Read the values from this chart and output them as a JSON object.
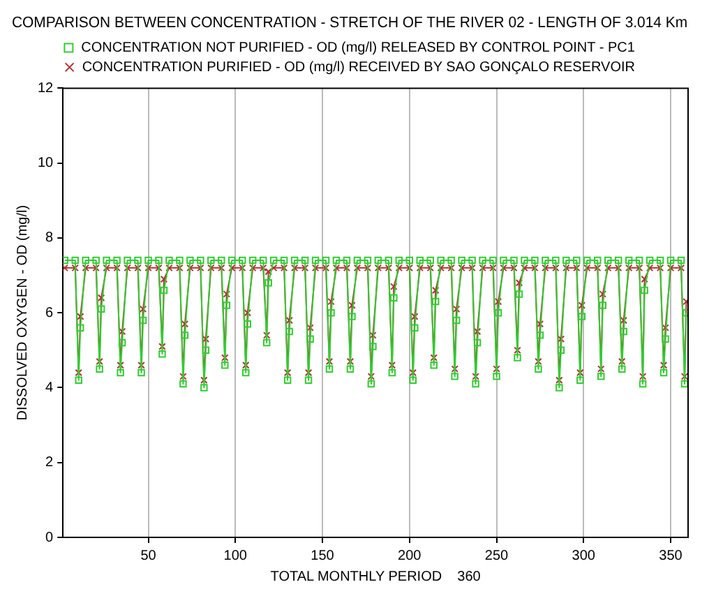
{
  "chart_data": {
    "type": "line",
    "title": "COMPARISON BETWEEN CONCENTRATION - STRETCH OF THE RIVER 02 - LENGTH OF 3.014 Km",
    "xlabel": "TOTAL MONTHLY PERIOD    360",
    "ylabel": "DISSOLVED OXYGEN - OD (mg/l)",
    "x": [
      2,
      8,
      10,
      11,
      14,
      20,
      22,
      23,
      26,
      32,
      34,
      35,
      38,
      44,
      46,
      47,
      50,
      56,
      58,
      59,
      62,
      68,
      70,
      71,
      74,
      80,
      82,
      83,
      86,
      92,
      94,
      95,
      98,
      104,
      106,
      107,
      110,
      116,
      118,
      119,
      122,
      128,
      130,
      131,
      134,
      140,
      142,
      143,
      146,
      152,
      154,
      155,
      158,
      164,
      166,
      167,
      170,
      176,
      178,
      179,
      182,
      188,
      190,
      191,
      194,
      200,
      202,
      203,
      206,
      212,
      214,
      215,
      218,
      224,
      226,
      227,
      230,
      236,
      238,
      239,
      242,
      248,
      250,
      251,
      254,
      260,
      262,
      263,
      266,
      272,
      274,
      275,
      278,
      284,
      286,
      287,
      290,
      296,
      298,
      299,
      302,
      308,
      310,
      311,
      314,
      320,
      322,
      323,
      326,
      332,
      334,
      335,
      338,
      344,
      346,
      347,
      350,
      356,
      358,
      359
    ],
    "series": [
      {
        "name": "CONCENTRATION NOT PURIFIED - OD (mg/l) RELEASED BY CONTROL POINT - PC1",
        "color": "#33cc33",
        "marker": "square",
        "values": [
          7.4,
          7.4,
          4.2,
          5.6,
          7.4,
          7.4,
          4.5,
          6.1,
          7.4,
          7.4,
          4.4,
          5.2,
          7.4,
          7.4,
          4.4,
          5.8,
          7.4,
          7.4,
          4.9,
          6.6,
          7.4,
          7.4,
          4.1,
          5.4,
          7.4,
          7.4,
          4.0,
          5.0,
          7.4,
          7.4,
          4.6,
          6.2,
          7.4,
          7.4,
          4.4,
          5.7,
          7.4,
          7.4,
          5.2,
          6.8,
          7.4,
          7.4,
          4.2,
          5.5,
          7.4,
          7.4,
          4.2,
          5.3,
          7.4,
          7.4,
          4.5,
          6.0,
          7.4,
          7.4,
          4.5,
          5.9,
          7.4,
          7.4,
          4.1,
          5.1,
          7.4,
          7.4,
          4.4,
          6.4,
          7.4,
          7.4,
          4.2,
          5.6,
          7.4,
          7.4,
          4.6,
          6.3,
          7.4,
          7.4,
          4.3,
          5.8,
          7.4,
          7.4,
          4.1,
          5.2,
          7.4,
          7.4,
          4.3,
          6.0,
          7.4,
          7.4,
          4.8,
          6.5,
          7.4,
          7.4,
          4.5,
          5.4,
          7.4,
          7.4,
          4.0,
          5.0,
          7.4,
          7.4,
          4.2,
          5.9,
          7.4,
          7.4,
          4.3,
          6.2,
          7.4,
          7.4,
          4.5,
          5.5,
          7.4,
          7.4,
          4.1,
          6.6,
          7.4,
          7.4,
          4.4,
          5.3,
          7.4,
          7.4,
          4.1,
          6.0
        ]
      },
      {
        "name": "CONCENTRATION PURIFIED - OD (mg/l) RECEIVED BY SAO GONÇALO RESERVOIR",
        "color": "#b03030",
        "marker": "cross",
        "values": [
          7.2,
          7.2,
          4.4,
          5.9,
          7.2,
          7.2,
          4.7,
          6.4,
          7.2,
          7.2,
          4.6,
          5.5,
          7.2,
          7.2,
          4.6,
          6.1,
          7.2,
          7.2,
          5.1,
          6.9,
          7.2,
          7.2,
          4.3,
          5.7,
          7.2,
          7.2,
          4.2,
          5.3,
          7.2,
          7.2,
          4.8,
          6.5,
          7.2,
          7.2,
          4.6,
          6.0,
          7.2,
          7.2,
          5.4,
          7.1,
          7.2,
          7.2,
          4.4,
          5.8,
          7.2,
          7.2,
          4.4,
          5.6,
          7.2,
          7.2,
          4.7,
          6.3,
          7.2,
          7.2,
          4.7,
          6.2,
          7.2,
          7.2,
          4.3,
          5.4,
          7.2,
          7.2,
          4.6,
          6.7,
          7.2,
          7.2,
          4.4,
          5.9,
          7.2,
          7.2,
          4.8,
          6.6,
          7.2,
          7.2,
          4.5,
          6.1,
          7.2,
          7.2,
          4.3,
          5.5,
          7.2,
          7.2,
          4.5,
          6.3,
          7.2,
          7.2,
          5.0,
          6.8,
          7.2,
          7.2,
          4.7,
          5.7,
          7.2,
          7.2,
          4.2,
          5.3,
          7.2,
          7.2,
          4.4,
          6.2,
          7.2,
          7.2,
          4.5,
          6.5,
          7.2,
          7.2,
          4.7,
          5.8,
          7.2,
          7.2,
          4.3,
          6.9,
          7.2,
          7.2,
          4.6,
          5.6,
          7.2,
          7.2,
          4.3,
          6.3
        ]
      }
    ],
    "xlim": [
      1,
      360
    ],
    "xticks": [
      50,
      100,
      150,
      200,
      250,
      300,
      350
    ],
    "ylim": [
      0,
      12
    ],
    "yticks": [
      0,
      2,
      4,
      6,
      8,
      10,
      12
    ],
    "grid": "x",
    "legend": "top"
  }
}
